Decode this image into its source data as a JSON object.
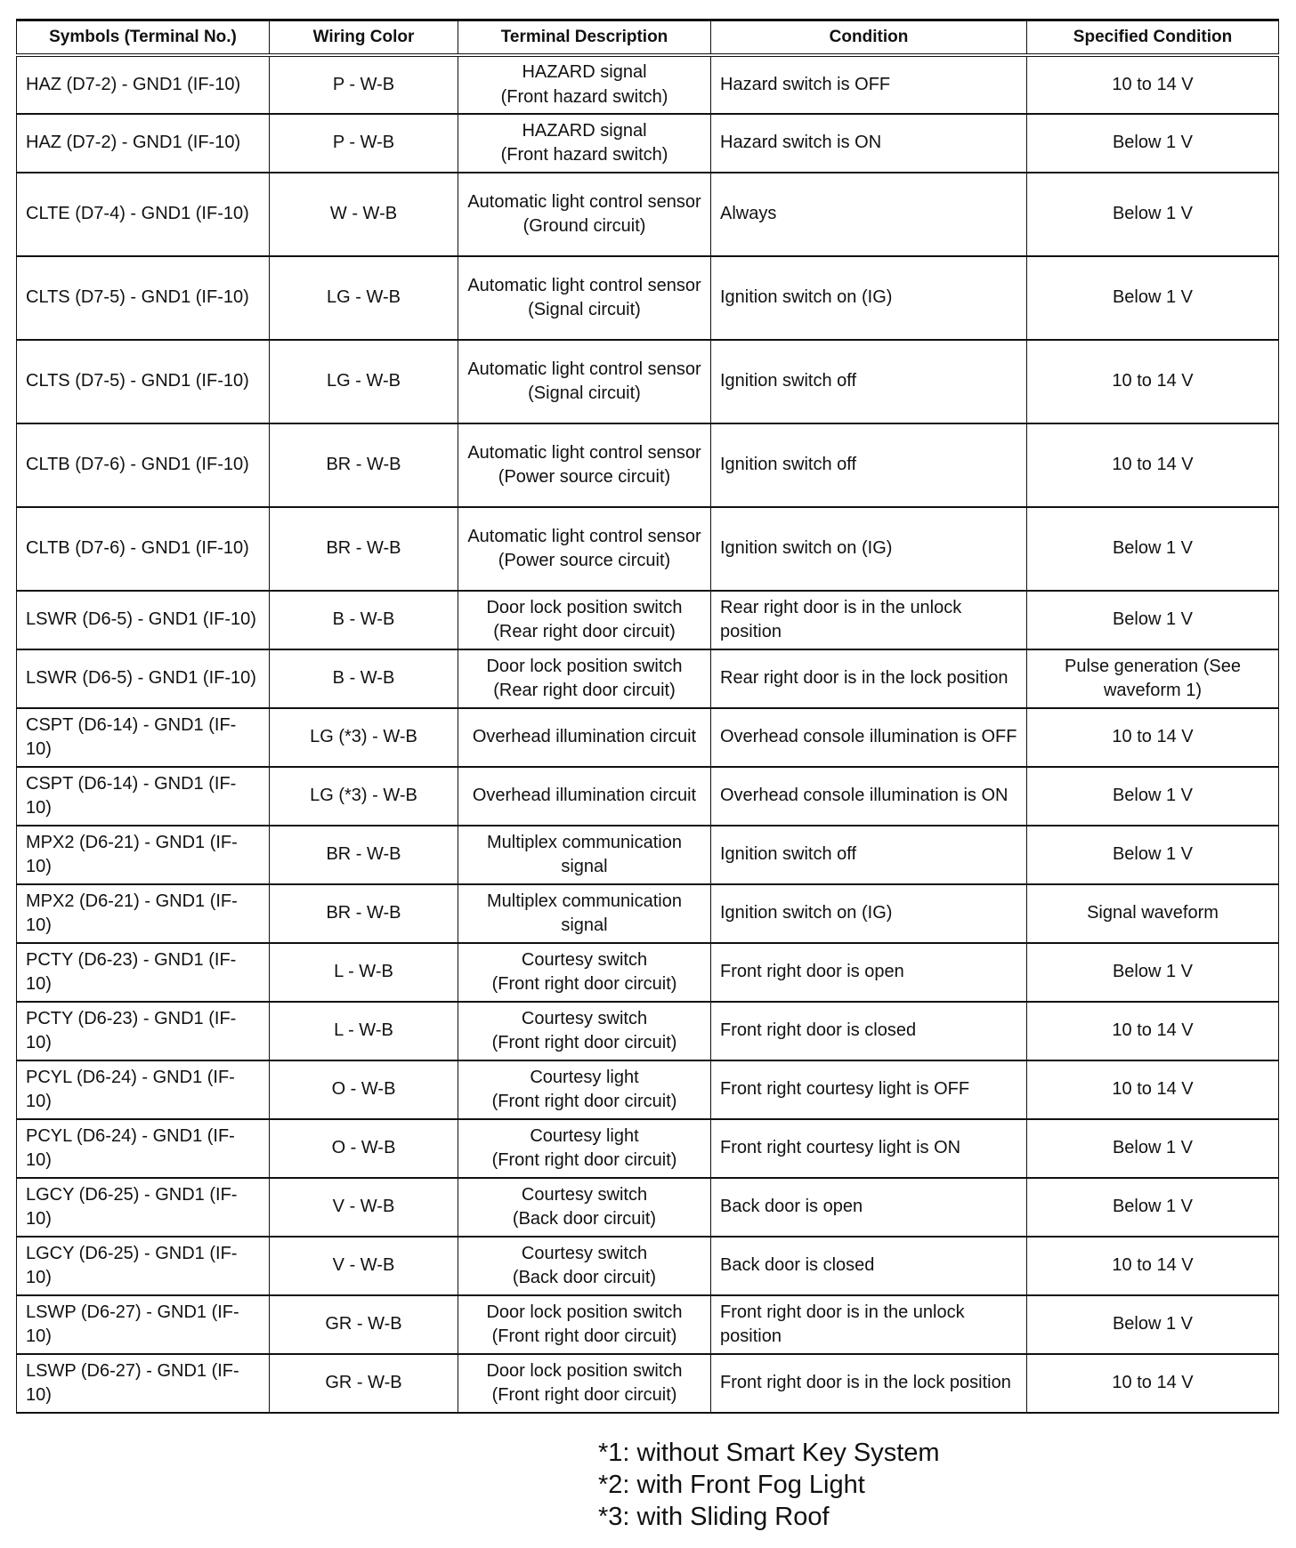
{
  "headers": [
    "Symbols (Terminal No.)",
    "Wiring Color",
    "Terminal Description",
    "Condition",
    "Specified Condition"
  ],
  "rows": [
    {
      "symbol": "HAZ (D7-2) - GND1 (IF-10)",
      "color": "P - W-B",
      "desc": [
        "HAZARD signal",
        "(Front hazard switch)"
      ],
      "condition": "Hazard switch is OFF",
      "spec": "10 to 14 V"
    },
    {
      "symbol": "HAZ (D7-2) - GND1 (IF-10)",
      "color": "P - W-B",
      "desc": [
        "HAZARD signal",
        "(Front hazard switch)"
      ],
      "condition": "Hazard switch is ON",
      "spec": "Below 1 V"
    },
    {
      "symbol": "CLTE (D7-4) - GND1 (IF-10)",
      "color": "W - W-B",
      "desc": [
        "Automatic light control sensor",
        "(Ground circuit)"
      ],
      "condition": "Always",
      "spec": "Below 1 V"
    },
    {
      "symbol": "CLTS (D7-5) - GND1 (IF-10)",
      "color": "LG - W-B",
      "desc": [
        "Automatic light control sensor",
        "(Signal circuit)"
      ],
      "condition": "Ignition switch on (IG)",
      "spec": "Below 1 V"
    },
    {
      "symbol": "CLTS (D7-5) - GND1 (IF-10)",
      "color": "LG - W-B",
      "desc": [
        "Automatic light control sensor",
        "(Signal circuit)"
      ],
      "condition": "Ignition switch off",
      "spec": "10 to 14 V"
    },
    {
      "symbol": "CLTB (D7-6) - GND1 (IF-10)",
      "color": "BR - W-B",
      "desc": [
        "Automatic light control sensor",
        "(Power source circuit)"
      ],
      "condition": "Ignition switch off",
      "spec": "10 to 14 V"
    },
    {
      "symbol": "CLTB (D7-6) - GND1 (IF-10)",
      "color": "BR - W-B",
      "desc": [
        "Automatic light control sensor",
        "(Power source circuit)"
      ],
      "condition": "Ignition switch on (IG)",
      "spec": "Below 1 V"
    },
    {
      "symbol": "LSWR (D6-5) - GND1 (IF-10)",
      "color": "B - W-B",
      "desc": [
        "Door lock position switch",
        "(Rear right door circuit)"
      ],
      "condition": "Rear right door is in the unlock position",
      "spec": "Below 1 V"
    },
    {
      "symbol": "LSWR (D6-5) - GND1 (IF-10)",
      "color": "B - W-B",
      "desc": [
        "Door lock position switch",
        "(Rear right door circuit)"
      ],
      "condition": "Rear right door is in the lock position",
      "spec": "Pulse generation (See waveform 1)"
    },
    {
      "symbol": "CSPT (D6-14) - GND1 (IF-10)",
      "color": "LG (*3) - W-B",
      "desc": [
        "Overhead illumination circuit"
      ],
      "condition": "Overhead console illumination is OFF",
      "spec": "10 to 14 V"
    },
    {
      "symbol": "CSPT (D6-14) - GND1 (IF-10)",
      "color": "LG (*3) - W-B",
      "desc": [
        "Overhead illumination circuit"
      ],
      "condition": "Overhead console illumination is ON",
      "spec": "Below 1 V"
    },
    {
      "symbol": "MPX2 (D6-21) - GND1 (IF-10)",
      "color": "BR - W-B",
      "desc": [
        "Multiplex communication signal"
      ],
      "condition": "Ignition switch off",
      "spec": "Below 1 V"
    },
    {
      "symbol": "MPX2 (D6-21) - GND1 (IF-10)",
      "color": "BR - W-B",
      "desc": [
        "Multiplex communication signal"
      ],
      "condition": "Ignition switch on (IG)",
      "spec": "Signal waveform"
    },
    {
      "symbol": "PCTY (D6-23) - GND1 (IF-10)",
      "color": "L - W-B",
      "desc": [
        "Courtesy switch",
        "(Front right door circuit)"
      ],
      "condition": "Front right door is open",
      "spec": "Below 1 V"
    },
    {
      "symbol": "PCTY (D6-23) - GND1 (IF-10)",
      "color": "L - W-B",
      "desc": [
        "Courtesy switch",
        "(Front right door circuit)"
      ],
      "condition": "Front right door is closed",
      "spec": "10 to 14 V"
    },
    {
      "symbol": "PCYL (D6-24) - GND1 (IF-10)",
      "color": "O - W-B",
      "desc": [
        "Courtesy light",
        "(Front right door circuit)"
      ],
      "condition": "Front right courtesy light is OFF",
      "spec": "10 to 14 V"
    },
    {
      "symbol": "PCYL (D6-24) - GND1 (IF-10)",
      "color": "O - W-B",
      "desc": [
        "Courtesy light",
        "(Front right door circuit)"
      ],
      "condition": "Front right courtesy light is ON",
      "spec": "Below 1 V"
    },
    {
      "symbol": "LGCY (D6-25) - GND1 (IF-10)",
      "color": "V - W-B",
      "desc": [
        "Courtesy switch",
        "(Back door circuit)"
      ],
      "condition": "Back door is open",
      "spec": "Below 1 V"
    },
    {
      "symbol": "LGCY (D6-25) - GND1 (IF-10)",
      "color": "V - W-B",
      "desc": [
        "Courtesy switch",
        "(Back door circuit)"
      ],
      "condition": "Back door is closed",
      "spec": "10 to 14 V"
    },
    {
      "symbol": "LSWP (D6-27) - GND1 (IF-10)",
      "color": "GR - W-B",
      "desc": [
        "Door lock position switch",
        "(Front right door circuit)"
      ],
      "condition": "Front right door is in the unlock position",
      "spec": "Below 1 V"
    },
    {
      "symbol": "LSWP (D6-27) - GND1 (IF-10)",
      "color": "GR - W-B",
      "desc": [
        "Door lock position switch",
        "(Front right door circuit)"
      ],
      "condition": "Front right door is in the lock position",
      "spec": "10 to 14 V"
    }
  ],
  "footnotes": [
    "*1: without Smart Key System",
    "*2: with Front Fog Light",
    "*3: with Sliding Roof"
  ]
}
